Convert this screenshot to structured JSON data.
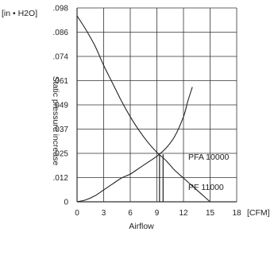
{
  "chart_data": {
    "type": "line",
    "title": "",
    "y_unit": "[in • H2O]",
    "x_unit": "[CFM]",
    "xlabel": "Airflow",
    "ylabel": "Static pressure increase",
    "x_ticks": [
      0,
      3,
      6,
      9,
      12,
      15,
      18
    ],
    "y_ticks": [
      "0",
      ".012",
      ".025",
      ".037",
      ".049",
      ".061",
      ".074",
      ".086",
      ".098"
    ],
    "xlim": [
      0,
      18
    ],
    "ylim": [
      0,
      0.098
    ],
    "grid": true,
    "series": [
      {
        "name": "PFA 10000",
        "x": [
          0,
          1,
          2,
          3,
          4,
          5,
          6,
          7,
          8,
          9,
          10,
          11,
          12,
          13,
          14,
          15
        ],
        "y": [
          0.094,
          0.087,
          0.079,
          0.069,
          0.06,
          0.051,
          0.043,
          0.036,
          0.03,
          0.025,
          0.021,
          0.016,
          0.012,
          0.008,
          0.004,
          0
        ]
      },
      {
        "name": "PF 11000",
        "x": [
          0,
          1,
          2,
          3,
          4,
          5,
          6,
          7,
          8,
          9,
          10,
          11,
          12,
          12.5,
          13
        ],
        "y": [
          0,
          0.001,
          0.003,
          0.006,
          0.009,
          0.012,
          0.014,
          0.017,
          0.02,
          0.023,
          0.027,
          0.033,
          0.043,
          0.051,
          0.058
        ]
      }
    ],
    "markers": [
      {
        "x": 9.3,
        "y": 0.0235
      },
      {
        "x": 9.7,
        "y": 0.024
      }
    ]
  }
}
